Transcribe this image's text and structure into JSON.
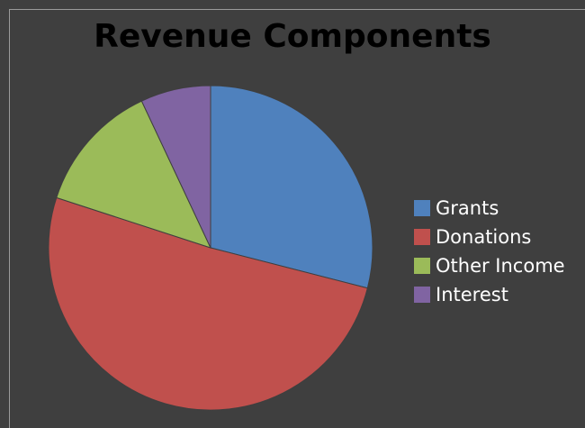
{
  "chart_data": {
    "type": "pie",
    "title": "Revenue Components",
    "categories": [
      "Grants",
      "Donations",
      "Other Income",
      "Interest"
    ],
    "values": [
      29,
      51,
      13,
      7
    ],
    "colors": [
      "#4f81bd",
      "#c0504d",
      "#9bbb59",
      "#8064a2"
    ],
    "legend_position": "right",
    "grid": false
  }
}
